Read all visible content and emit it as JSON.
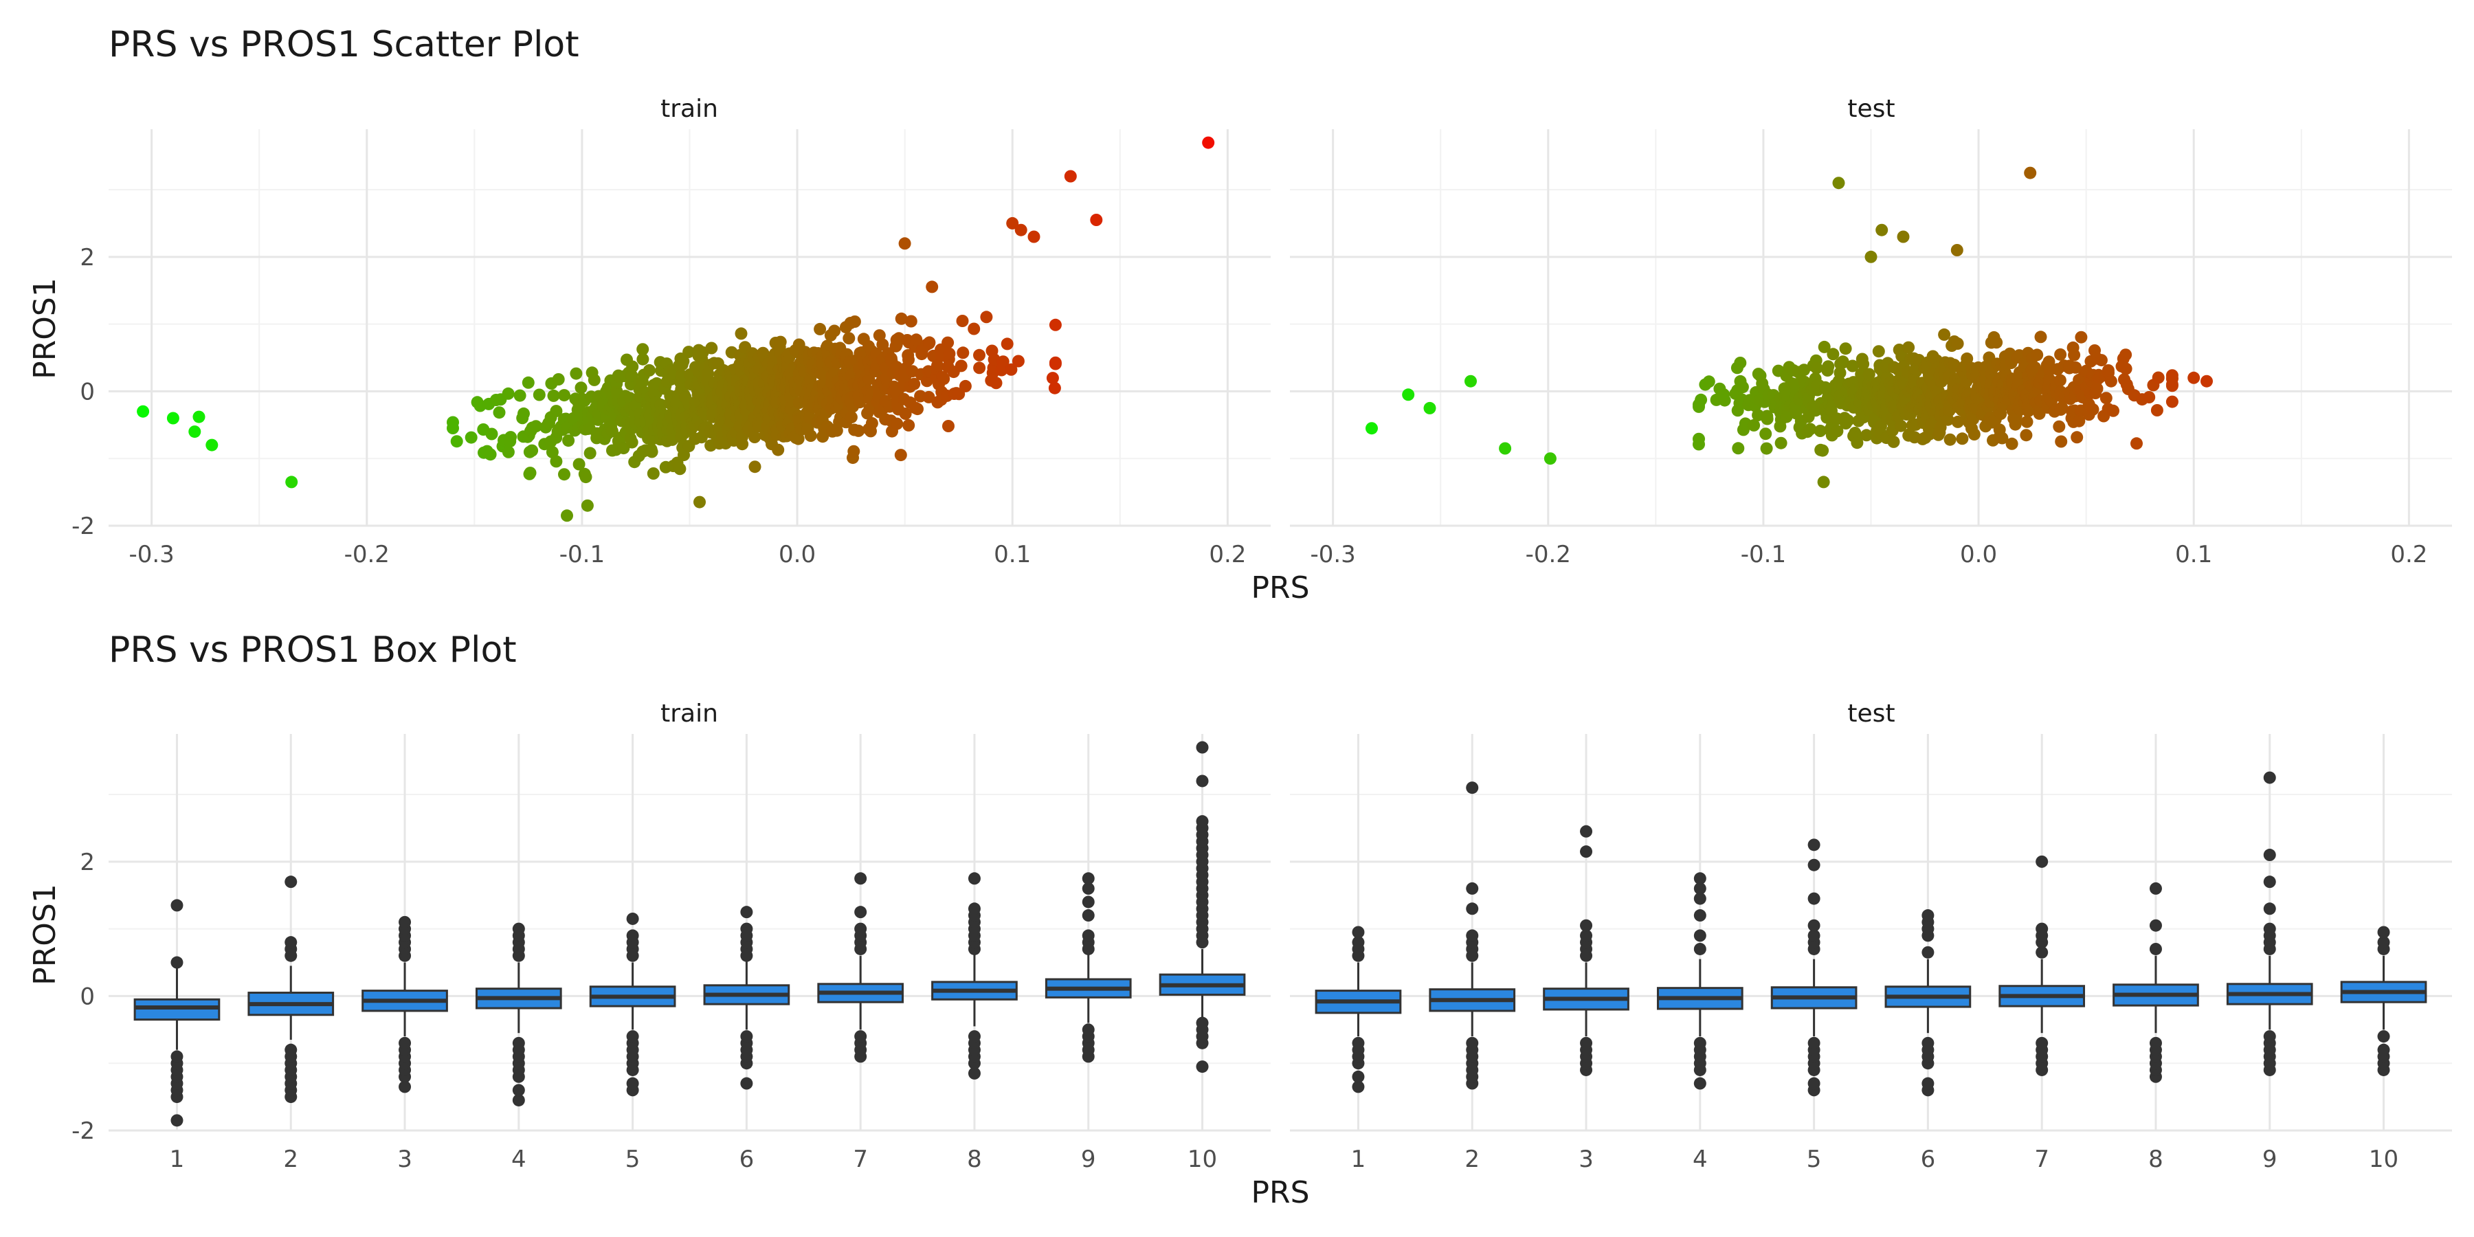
{
  "chart_data": [
    {
      "type": "scatter",
      "title": "PRS vs PROS1 Scatter Plot",
      "xlabel": "PRS",
      "ylabel": "PROS1",
      "xlim": [
        -0.32,
        0.22
      ],
      "ylim": [
        -2.0,
        3.9
      ],
      "x_ticks": [
        -0.3,
        -0.2,
        -0.1,
        0.0,
        0.1,
        0.2
      ],
      "x_tick_labels": [
        "-0.3",
        "-0.2",
        "-0.1",
        "0.0",
        "0.1",
        "0.2"
      ],
      "y_ticks": [
        -2,
        0,
        2
      ],
      "y_tick_labels": [
        "-2",
        "0",
        "2"
      ],
      "grid": true,
      "color_scale": {
        "low": "#00ff00",
        "high": "#ff0000"
      },
      "panels": [
        {
          "label": "train",
          "notable_points": [
            [
              -0.304,
              -0.3
            ],
            [
              -0.29,
              -0.4
            ],
            [
              -0.278,
              -0.38
            ],
            [
              -0.28,
              -0.6
            ],
            [
              -0.272,
              -0.8
            ],
            [
              -0.235,
              -1.35
            ],
            [
              -0.107,
              -1.85
            ],
            [
              0.05,
              2.2
            ],
            [
              0.1,
              2.5
            ],
            [
              0.104,
              2.4
            ],
            [
              0.11,
              2.3
            ],
            [
              0.127,
              3.2
            ],
            [
              0.139,
              2.55
            ],
            [
              0.191,
              3.7
            ]
          ],
          "cloud": {
            "n": 1100,
            "x_center": -0.02,
            "x_sd": 0.05,
            "x_range": [
              -0.16,
              0.12
            ],
            "slope": 4.0,
            "noise_sd": 0.38
          }
        },
        {
          "label": "test",
          "notable_points": [
            [
              -0.282,
              -0.55
            ],
            [
              -0.265,
              -0.05
            ],
            [
              -0.255,
              -0.25
            ],
            [
              -0.236,
              0.15
            ],
            [
              -0.22,
              -0.85
            ],
            [
              -0.199,
              -1.0
            ],
            [
              -0.127,
              0.1
            ],
            [
              -0.072,
              -1.35
            ],
            [
              -0.065,
              3.1
            ],
            [
              -0.05,
              2.0
            ],
            [
              -0.045,
              2.4
            ],
            [
              -0.035,
              2.3
            ],
            [
              -0.01,
              2.1
            ],
            [
              0.024,
              3.25
            ],
            [
              0.1,
              0.2
            ],
            [
              0.106,
              0.15
            ]
          ],
          "cloud": {
            "n": 800,
            "x_center": -0.02,
            "x_sd": 0.045,
            "x_range": [
              -0.13,
              0.09
            ],
            "slope": 1.2,
            "noise_sd": 0.3
          }
        }
      ]
    },
    {
      "type": "box",
      "title": "PRS vs PROS1 Box Plot",
      "xlabel": "PRS",
      "ylabel": "PROS1",
      "categories": [
        "1",
        "2",
        "3",
        "4",
        "5",
        "6",
        "7",
        "8",
        "9",
        "10"
      ],
      "ylim": [
        -2.0,
        3.9
      ],
      "y_ticks": [
        -2,
        0,
        2
      ],
      "y_tick_labels": [
        "-2",
        "0",
        "2"
      ],
      "fill": "#2b87e0",
      "grid": true,
      "panels": [
        {
          "label": "train",
          "boxes": [
            {
              "q1": -0.35,
              "median": -0.17,
              "q3": -0.05,
              "whisker_low": -0.8,
              "whisker_high": 0.5,
              "outliers": [
                -1.85,
                -1.5,
                -1.4,
                -1.3,
                -1.2,
                -1.1,
                -1.0,
                -0.9,
                0.5,
                1.35
              ]
            },
            {
              "q1": -0.28,
              "median": -0.12,
              "q3": 0.05,
              "whisker_low": -0.65,
              "whisker_high": 0.45,
              "outliers": [
                -1.5,
                -1.4,
                -1.3,
                -1.2,
                -1.1,
                -1.0,
                -0.9,
                -0.8,
                0.6,
                0.7,
                0.8,
                1.7
              ]
            },
            {
              "q1": -0.22,
              "median": -0.07,
              "q3": 0.08,
              "whisker_low": -0.6,
              "whisker_high": 0.5,
              "outliers": [
                -1.35,
                -1.2,
                -1.1,
                -1.0,
                -0.9,
                -0.8,
                -0.7,
                0.6,
                0.7,
                0.8,
                0.9,
                1.0,
                1.1
              ]
            },
            {
              "q1": -0.18,
              "median": -0.03,
              "q3": 0.11,
              "whisker_low": -0.55,
              "whisker_high": 0.5,
              "outliers": [
                -1.55,
                -1.4,
                -1.2,
                -1.1,
                -1.0,
                -0.9,
                -0.8,
                -0.7,
                0.6,
                0.7,
                0.8,
                0.9,
                1.0
              ]
            },
            {
              "q1": -0.15,
              "median": -0.01,
              "q3": 0.14,
              "whisker_low": -0.5,
              "whisker_high": 0.5,
              "outliers": [
                -1.4,
                -1.3,
                -1.1,
                -1.0,
                -0.9,
                -0.8,
                -0.7,
                -0.6,
                0.6,
                0.7,
                0.8,
                0.9,
                1.15
              ]
            },
            {
              "q1": -0.12,
              "median": 0.02,
              "q3": 0.16,
              "whisker_low": -0.5,
              "whisker_high": 0.55,
              "outliers": [
                -1.3,
                -1.0,
                -0.9,
                -0.8,
                -0.7,
                -0.6,
                0.6,
                0.7,
                0.8,
                0.9,
                1.0,
                1.25
              ]
            },
            {
              "q1": -0.09,
              "median": 0.05,
              "q3": 0.18,
              "whisker_low": -0.5,
              "whisker_high": 0.6,
              "outliers": [
                -0.9,
                -0.8,
                -0.7,
                -0.6,
                0.7,
                0.8,
                0.9,
                1.0,
                1.25,
                1.75
              ]
            },
            {
              "q1": -0.05,
              "median": 0.08,
              "q3": 0.21,
              "whisker_low": -0.45,
              "whisker_high": 0.65,
              "outliers": [
                -1.15,
                -1.0,
                -0.9,
                -0.8,
                -0.7,
                -0.6,
                0.7,
                0.8,
                0.9,
                1.0,
                1.1,
                1.2,
                1.3,
                1.75
              ]
            },
            {
              "q1": -0.02,
              "median": 0.11,
              "q3": 0.25,
              "whisker_low": -0.4,
              "whisker_high": 0.65,
              "outliers": [
                -0.9,
                -0.8,
                -0.7,
                -0.6,
                -0.5,
                0.7,
                0.8,
                0.9,
                1.2,
                1.4,
                1.6,
                1.75
              ]
            },
            {
              "q1": 0.02,
              "median": 0.16,
              "q3": 0.32,
              "whisker_low": -0.35,
              "whisker_high": 0.7,
              "outliers": [
                -1.05,
                -0.7,
                -0.6,
                -0.5,
                -0.4,
                0.8,
                0.9,
                1.0,
                1.1,
                1.2,
                1.3,
                1.4,
                1.5,
                1.6,
                1.7,
                1.8,
                1.9,
                2.0,
                2.1,
                2.2,
                2.3,
                2.4,
                2.5,
                2.6,
                3.2,
                3.7
              ]
            }
          ]
        },
        {
          "label": "test",
          "boxes": [
            {
              "q1": -0.25,
              "median": -0.08,
              "q3": 0.08,
              "whisker_low": -0.6,
              "whisker_high": 0.5,
              "outliers": [
                -1.35,
                -1.2,
                -1.0,
                -0.9,
                -0.8,
                -0.7,
                0.6,
                0.7,
                0.8,
                0.95
              ]
            },
            {
              "q1": -0.22,
              "median": -0.06,
              "q3": 0.1,
              "whisker_low": -0.6,
              "whisker_high": 0.5,
              "outliers": [
                -1.3,
                -1.2,
                -1.1,
                -1.0,
                -0.9,
                -0.8,
                -0.7,
                0.6,
                0.7,
                0.8,
                0.9,
                1.3,
                1.6,
                3.1
              ]
            },
            {
              "q1": -0.2,
              "median": -0.04,
              "q3": 0.11,
              "whisker_low": -0.6,
              "whisker_high": 0.5,
              "outliers": [
                -1.1,
                -1.0,
                -0.9,
                -0.8,
                -0.7,
                0.6,
                0.7,
                0.8,
                0.9,
                1.05,
                2.15,
                2.45
              ]
            },
            {
              "q1": -0.19,
              "median": -0.03,
              "q3": 0.12,
              "whisker_low": -0.6,
              "whisker_high": 0.55,
              "outliers": [
                -1.3,
                -1.1,
                -1.0,
                -0.9,
                -0.8,
                -0.7,
                0.7,
                0.9,
                1.2,
                1.45,
                1.6,
                1.75
              ]
            },
            {
              "q1": -0.18,
              "median": -0.02,
              "q3": 0.13,
              "whisker_low": -0.6,
              "whisker_high": 0.55,
              "outliers": [
                -1.4,
                -1.3,
                -1.1,
                -1.0,
                -0.9,
                -0.8,
                -0.7,
                0.7,
                0.8,
                0.9,
                1.05,
                1.45,
                1.95,
                2.25
              ]
            },
            {
              "q1": -0.16,
              "median": -0.01,
              "q3": 0.14,
              "whisker_low": -0.55,
              "whisker_high": 0.55,
              "outliers": [
                -1.4,
                -1.3,
                -1.0,
                -0.9,
                -0.8,
                -0.7,
                0.65,
                0.9,
                1.0,
                1.1,
                1.2
              ]
            },
            {
              "q1": -0.15,
              "median": 0.0,
              "q3": 0.15,
              "whisker_low": -0.55,
              "whisker_high": 0.55,
              "outliers": [
                -1.1,
                -1.0,
                -0.9,
                -0.8,
                -0.7,
                0.65,
                0.8,
                0.9,
                1.0,
                2.0
              ]
            },
            {
              "q1": -0.14,
              "median": 0.02,
              "q3": 0.17,
              "whisker_low": -0.55,
              "whisker_high": 0.6,
              "outliers": [
                -1.2,
                -1.1,
                -1.0,
                -0.9,
                -0.8,
                -0.7,
                0.7,
                1.05,
                1.6
              ]
            },
            {
              "q1": -0.12,
              "median": 0.03,
              "q3": 0.18,
              "whisker_low": -0.5,
              "whisker_high": 0.6,
              "outliers": [
                -1.1,
                -1.0,
                -0.9,
                -0.8,
                -0.7,
                -0.6,
                0.7,
                0.8,
                0.9,
                1.0,
                1.3,
                1.7,
                2.1,
                3.25
              ]
            },
            {
              "q1": -0.09,
              "median": 0.06,
              "q3": 0.21,
              "whisker_low": -0.5,
              "whisker_high": 0.6,
              "outliers": [
                -1.1,
                -1.0,
                -0.9,
                -0.8,
                -0.6,
                0.7,
                0.8,
                0.95
              ]
            }
          ]
        }
      ]
    }
  ]
}
